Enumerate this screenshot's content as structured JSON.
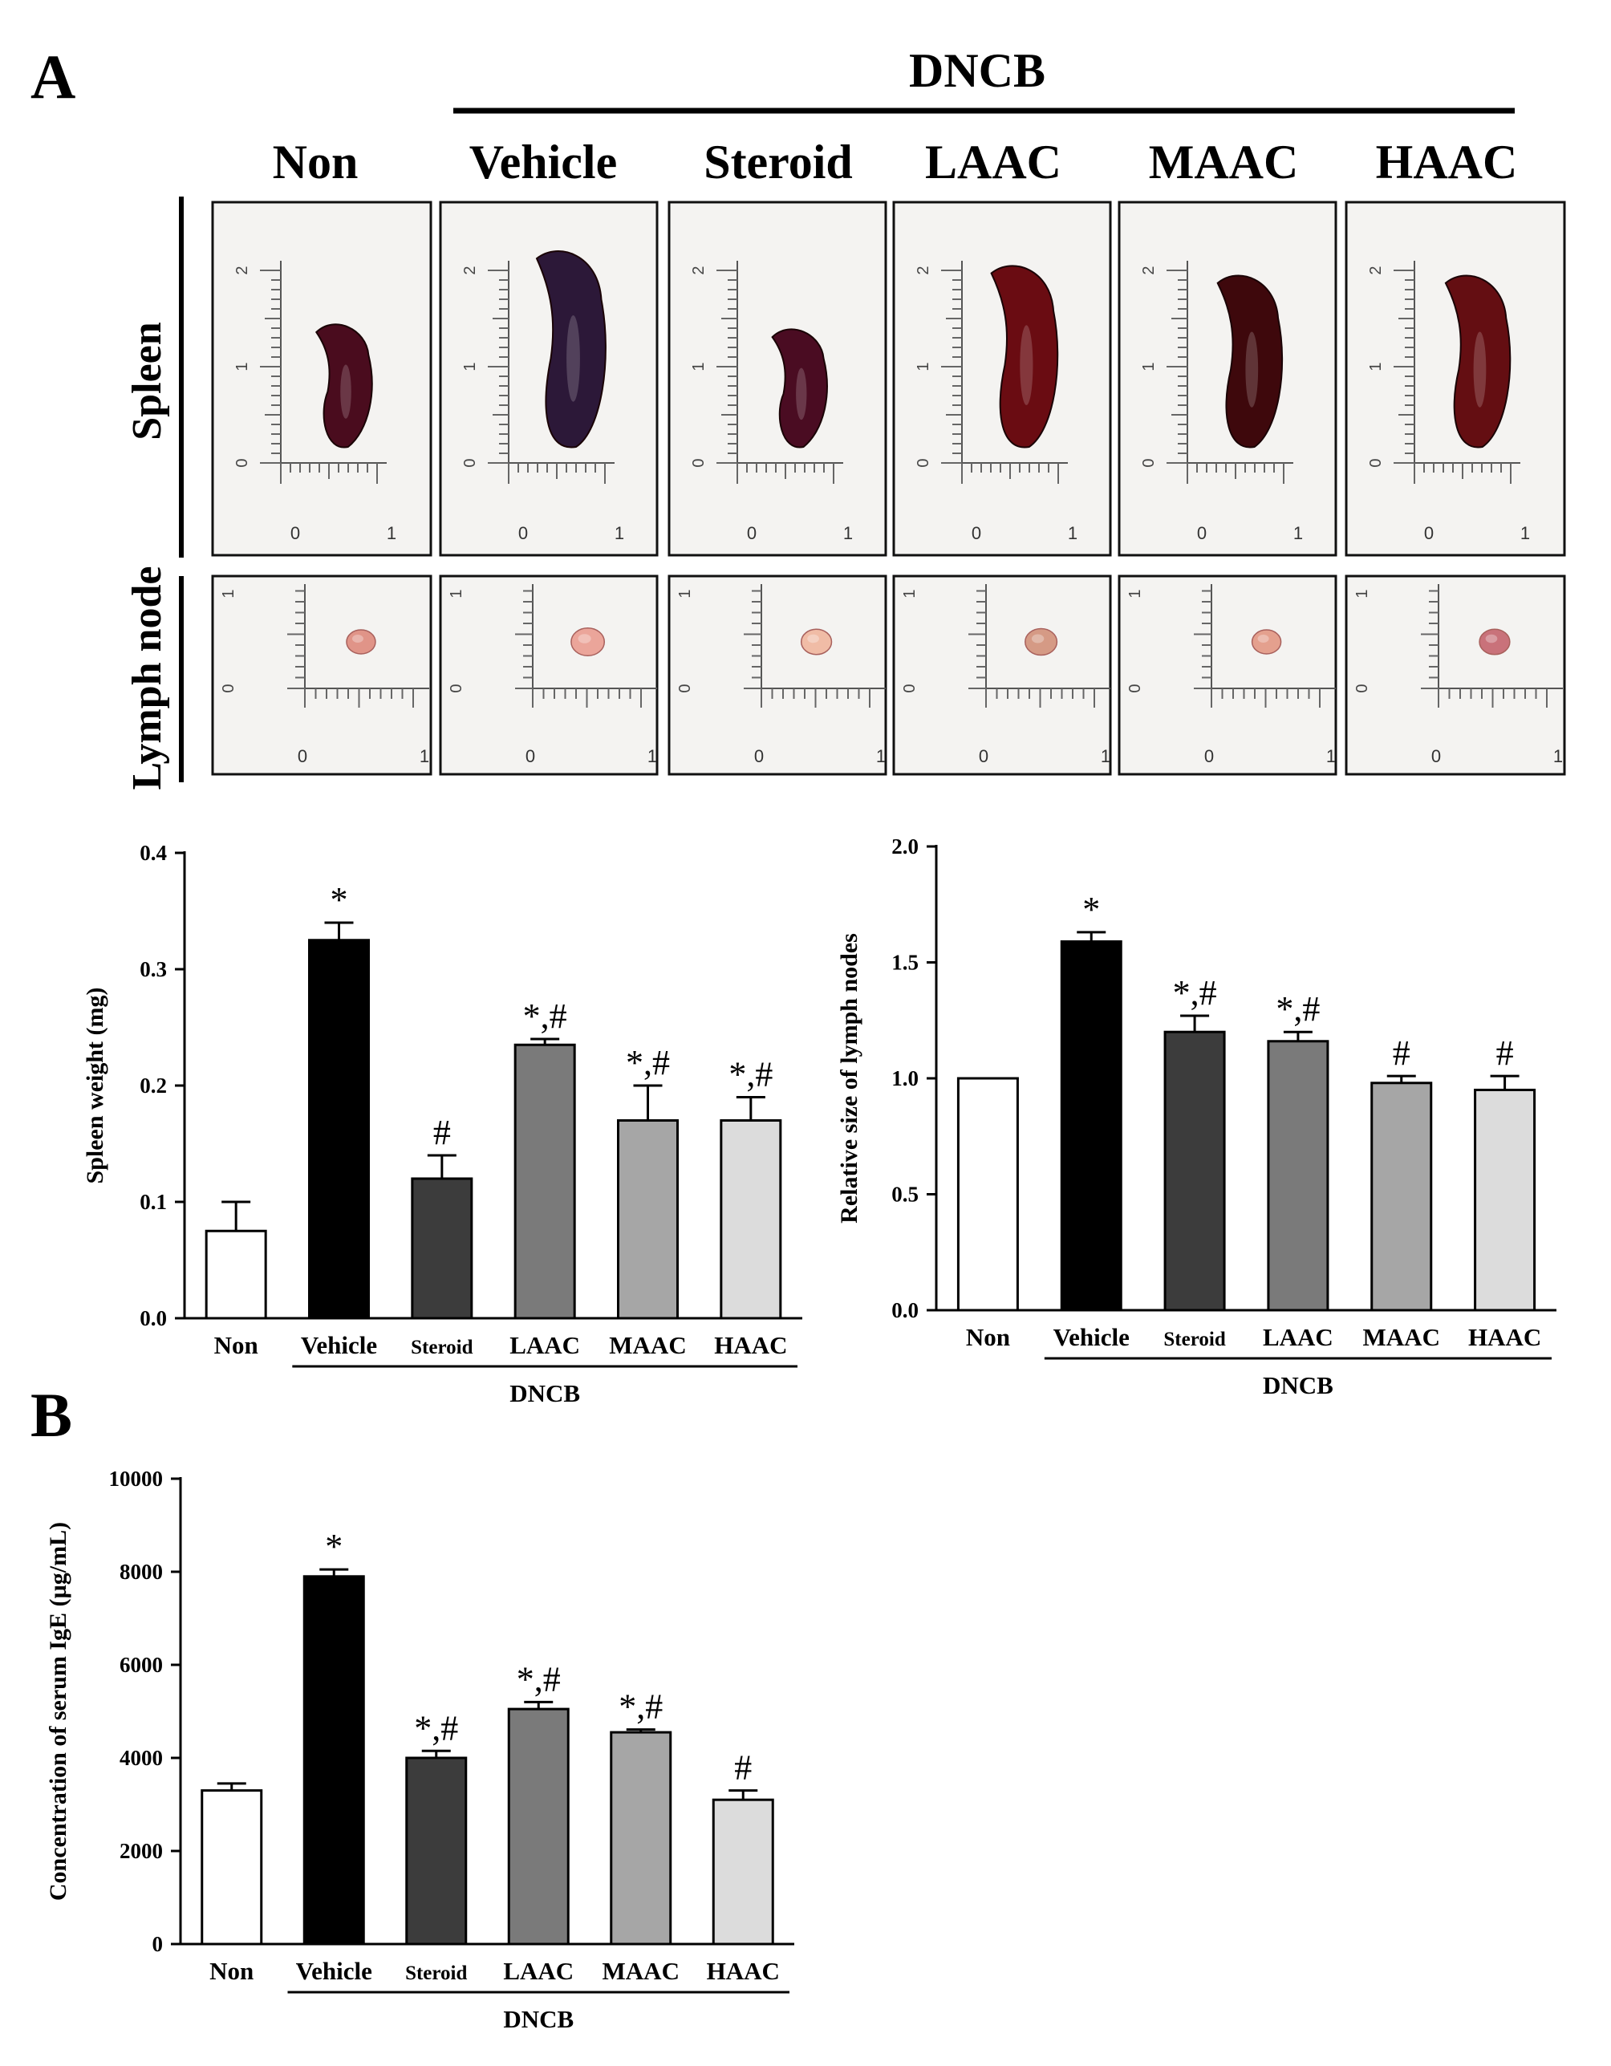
{
  "panel_a": {
    "label": "A",
    "dncb_label": "DNCB",
    "groups": [
      "Non",
      "Vehicle",
      "Steroid",
      "LAAC",
      "MAAC",
      "HAAC"
    ],
    "row_labels": [
      "Spleen",
      "Lymph node"
    ],
    "spleen_photos": [
      {
        "size_cm": 1.25,
        "tone": "#4a0c1e"
      },
      {
        "size_cm": 2.0,
        "tone": "#2c1838"
      },
      {
        "size_cm": 1.2,
        "tone": "#4a0c22"
      },
      {
        "size_cm": 1.85,
        "tone": "#6a0c12"
      },
      {
        "size_cm": 1.75,
        "tone": "#3e080c"
      },
      {
        "size_cm": 1.75,
        "tone": "#640e12"
      }
    ],
    "lymph_photos": [
      {
        "size": 1.0,
        "tone": "#e09488"
      },
      {
        "size": 1.15,
        "tone": "#eba59a"
      },
      {
        "size": 1.05,
        "tone": "#f0bca6"
      },
      {
        "size": 1.1,
        "tone": "#d59a85"
      },
      {
        "size": 1.0,
        "tone": "#e4a08e"
      },
      {
        "size": 1.05,
        "tone": "#c9727a"
      }
    ],
    "ruler_labels": {
      "zero": "0",
      "one": "1",
      "two": "2"
    }
  },
  "panel_b": {
    "label": "B"
  },
  "chart_data": [
    {
      "type": "bar",
      "id": "spleen_weight",
      "title": "",
      "categories": [
        "Non",
        "Vehicle",
        "Steroid",
        "LAAC",
        "MAAC",
        "HAAC"
      ],
      "values": [
        0.075,
        0.325,
        0.12,
        0.235,
        0.17,
        0.17
      ],
      "errors": [
        0.025,
        0.015,
        0.02,
        0.005,
        0.03,
        0.02
      ],
      "annotations": [
        "",
        "*",
        "#",
        "*,#",
        "*,#",
        "*,#"
      ],
      "xlabel": "DNCB",
      "ylabel": "Spleen weight (mg)",
      "ylim": [
        0,
        0.4
      ],
      "yticks": [
        0.0,
        0.1,
        0.2,
        0.3,
        0.4
      ],
      "ytick_labels": [
        "0.0",
        "0.1",
        "0.2",
        "0.3",
        "0.4"
      ],
      "colors": [
        "#ffffff",
        "#000000",
        "#3c3c3c",
        "#7a7a7a",
        "#a6a6a6",
        "#dcdcdc"
      ]
    },
    {
      "type": "bar",
      "id": "lymph_node_size",
      "title": "",
      "categories": [
        "Non",
        "Vehicle",
        "Steroid",
        "LAAC",
        "MAAC",
        "HAAC"
      ],
      "values": [
        1.0,
        1.59,
        1.2,
        1.16,
        0.98,
        0.95
      ],
      "errors": [
        0.0,
        0.04,
        0.07,
        0.04,
        0.03,
        0.06
      ],
      "annotations": [
        "",
        "*",
        "*,#",
        "*,#",
        "#",
        "#"
      ],
      "xlabel": "DNCB",
      "ylabel": "Relative size of lymph nodes",
      "ylim": [
        0,
        2.0
      ],
      "yticks": [
        0.0,
        0.5,
        1.0,
        1.5,
        2.0
      ],
      "ytick_labels": [
        "0.0",
        "0.5",
        "1.0",
        "1.5",
        "2.0"
      ],
      "colors": [
        "#ffffff",
        "#000000",
        "#3c3c3c",
        "#7a7a7a",
        "#a6a6a6",
        "#dcdcdc"
      ]
    },
    {
      "type": "bar",
      "id": "serum_ige",
      "title": "",
      "categories": [
        "Non",
        "Vehicle",
        "Steroid",
        "LAAC",
        "MAAC",
        "HAAC"
      ],
      "values": [
        3300,
        7900,
        4000,
        5050,
        4550,
        3100
      ],
      "errors": [
        150,
        150,
        150,
        150,
        60,
        200
      ],
      "annotations": [
        "",
        "*",
        "*,#",
        "*,#",
        "*,#",
        "#"
      ],
      "xlabel": "DNCB",
      "ylabel": "Concentration of serum IgE (µg/mL)",
      "ylim": [
        0,
        10000
      ],
      "yticks": [
        0,
        2000,
        4000,
        6000,
        8000,
        10000
      ],
      "ytick_labels": [
        "0",
        "2000",
        "4000",
        "6000",
        "8000",
        "10000"
      ],
      "colors": [
        "#ffffff",
        "#000000",
        "#3c3c3c",
        "#7a7a7a",
        "#a6a6a6",
        "#dcdcdc"
      ]
    }
  ]
}
